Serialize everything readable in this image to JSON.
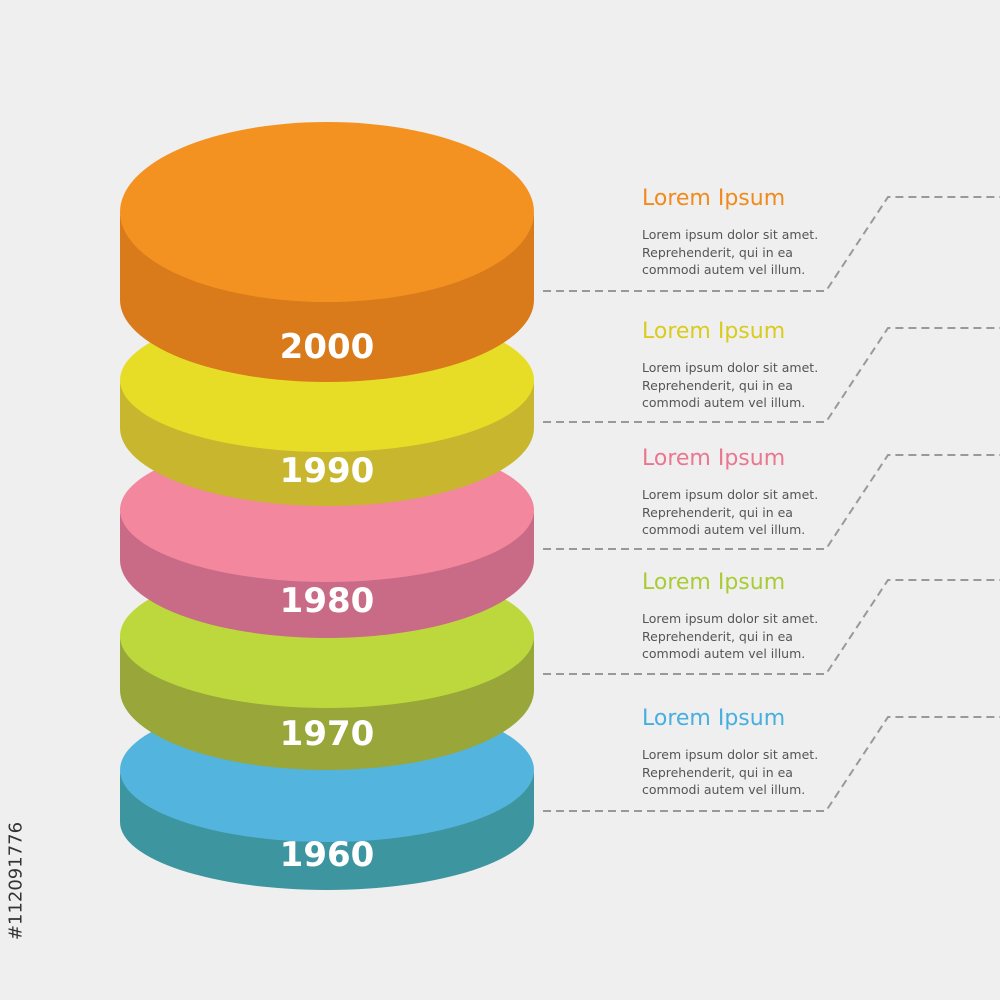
{
  "stock_id": "#112091776",
  "layers": [
    {
      "year": "2000",
      "title": "Lorem Ipsum",
      "lines": [
        "Lorem ipsum dolor sit amet.",
        "Reprehenderit, qui in ea",
        "commodi autem vel illum."
      ],
      "top": "#f39220",
      "side": "#d97a1b",
      "title_color": "#f08a1c"
    },
    {
      "year": "1990",
      "title": "Lorem Ipsum",
      "lines": [
        "Lorem ipsum dolor sit amet.",
        "Reprehenderit, qui in ea",
        "commodi autem vel illum."
      ],
      "top": "#e8dd26",
      "side": "#c8b72e",
      "title_color": "#d9cc1e"
    },
    {
      "year": "1980",
      "title": "Lorem Ipsum",
      "lines": [
        "Lorem ipsum dolor sit amet.",
        "Reprehenderit, qui in ea",
        "commodi autem vel illum."
      ],
      "top": "#f2879e",
      "side": "#c96a86",
      "title_color": "#ea7690"
    },
    {
      "year": "1970",
      "title": "Lorem Ipsum",
      "lines": [
        "Lorem ipsum dolor sit amet.",
        "Reprehenderit, qui in ea",
        "commodi autem vel illum."
      ],
      "top": "#bdd83c",
      "side": "#98a63a",
      "title_color": "#a9cc35"
    },
    {
      "year": "1960",
      "title": "Lorem Ipsum",
      "lines": [
        "Lorem ipsum dolor sit amet.",
        "Reprehenderit, qui in ea",
        "commodi autem vel illum."
      ],
      "top": "#53b5de",
      "side": "#3d95a0",
      "title_color": "#47aee0"
    }
  ]
}
